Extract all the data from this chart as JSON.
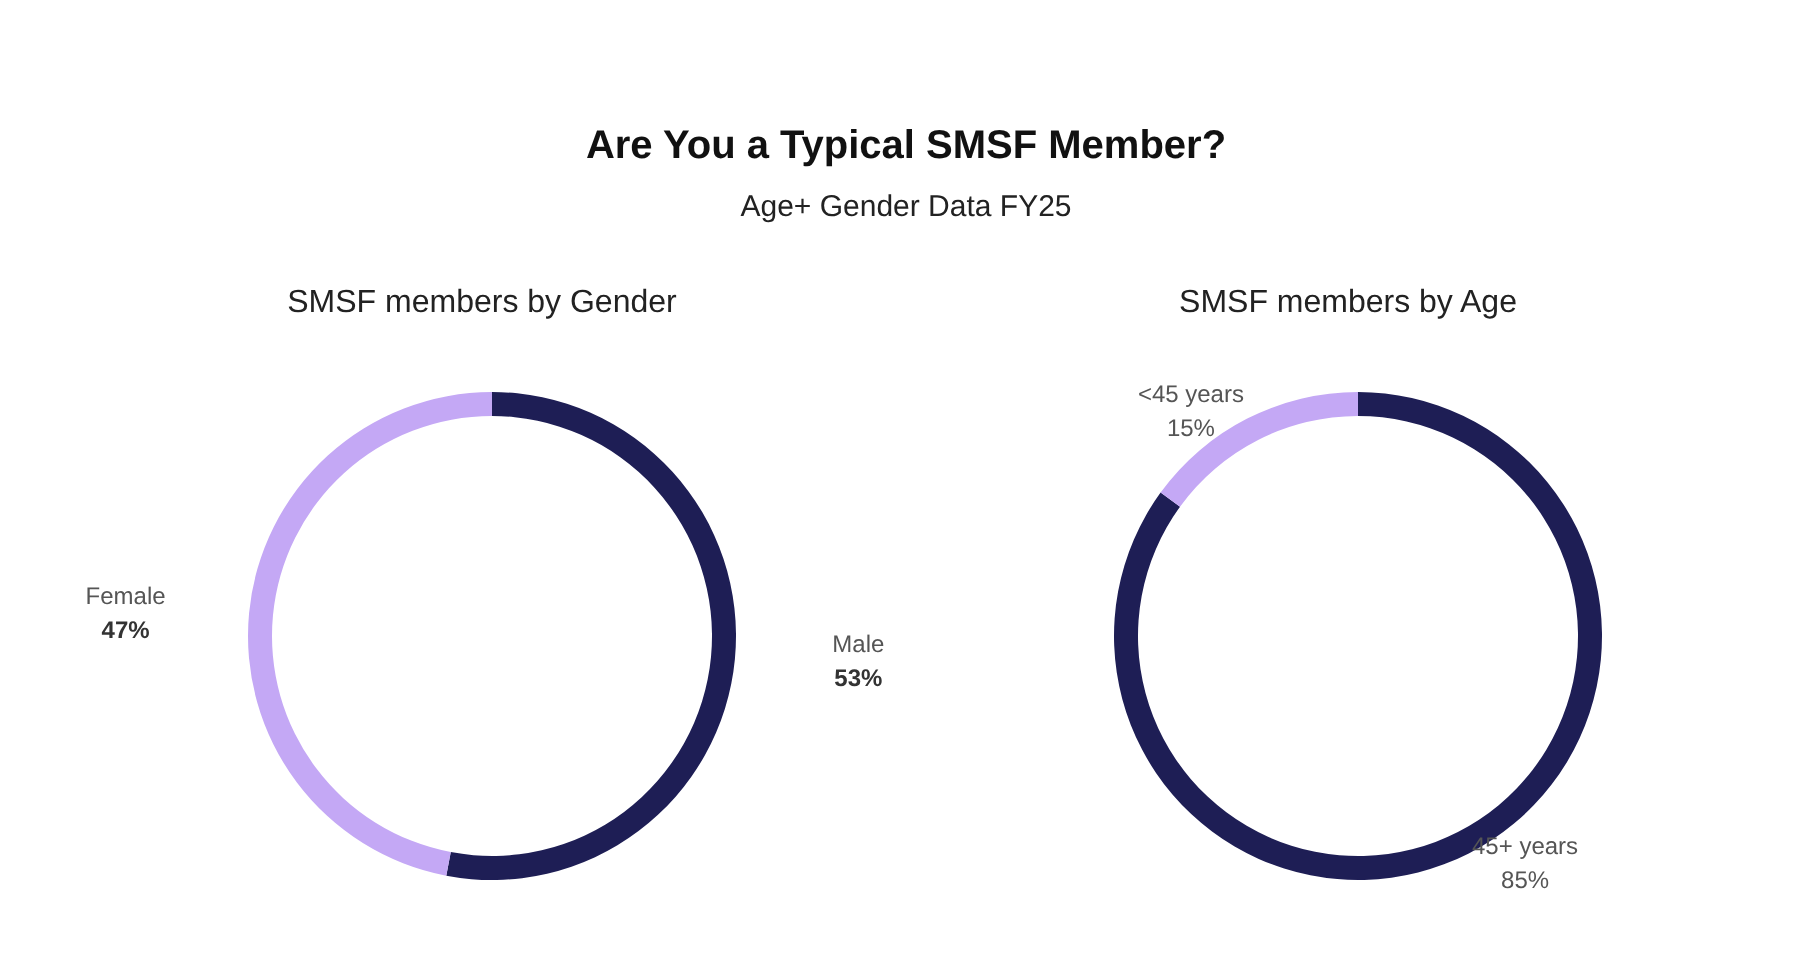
{
  "chart_data": [
    {
      "type": "other",
      "title": "Are You a Typical SMSF Member?",
      "subtitle": "Age+ Gender Data FY25"
    },
    {
      "type": "donut",
      "title": "SMSF members by Gender",
      "categories": [
        "Male",
        "Female"
      ],
      "values": [
        53,
        47
      ],
      "value_labels": [
        "53%",
        "47%"
      ],
      "colors": [
        "#1e1e55",
        "#c4a8f5"
      ],
      "legend": false
    },
    {
      "type": "donut",
      "title": "SMSF members by Age",
      "categories": [
        "45+ years",
        "<45 years"
      ],
      "values": [
        85,
        15
      ],
      "value_labels": [
        "85%",
        "15%"
      ],
      "colors": [
        "#1e1e55",
        "#c4a8f5"
      ],
      "legend": false
    }
  ]
}
